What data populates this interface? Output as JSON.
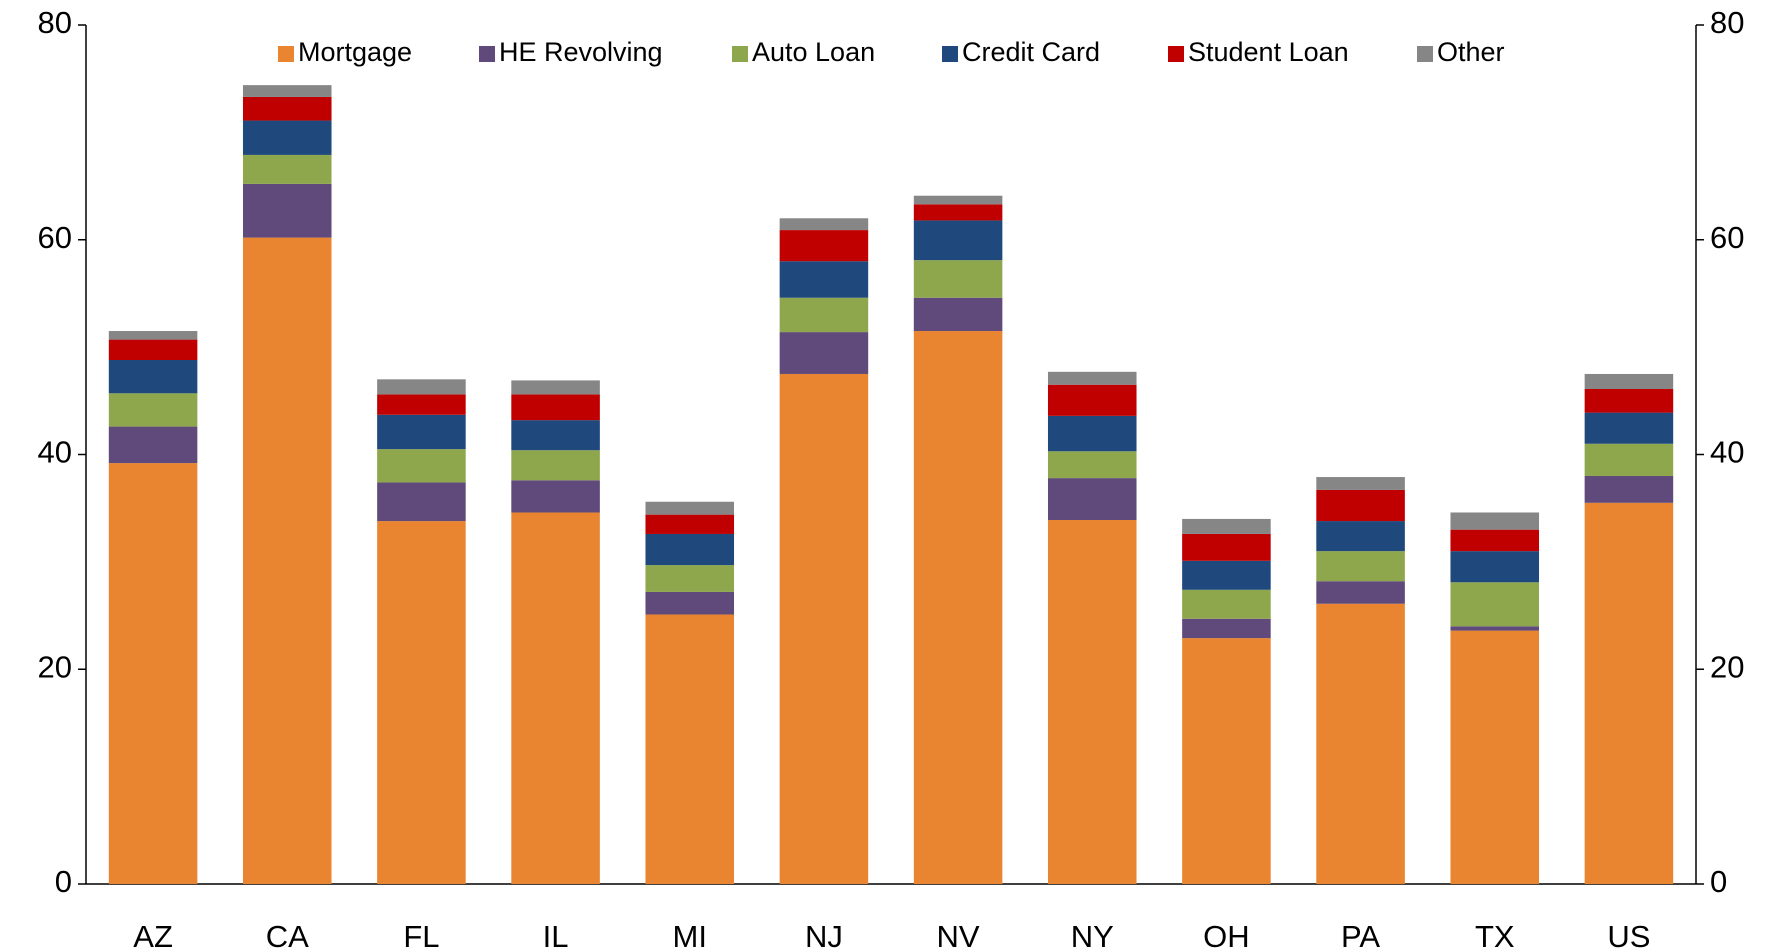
{
  "chart_data": {
    "type": "stacked-bar",
    "categories": [
      "AZ",
      "CA",
      "FL",
      "IL",
      "MI",
      "NJ",
      "NV",
      "NY",
      "OH",
      "PA",
      "TX",
      "US"
    ],
    "series": [
      {
        "name": "Mortgage",
        "color": "#e98531",
        "values": [
          39.2,
          60.2,
          33.8,
          34.6,
          25.1,
          47.5,
          51.5,
          33.9,
          22.9,
          26.1,
          23.6,
          35.5
        ]
      },
      {
        "name": "HE Revolving",
        "color": "#604a7b",
        "values": [
          3.4,
          5.0,
          3.6,
          3.0,
          2.1,
          3.9,
          3.1,
          3.9,
          1.8,
          2.1,
          0.4,
          2.5
        ]
      },
      {
        "name": "Auto Loan",
        "color": "#8ea64c",
        "values": [
          3.1,
          2.7,
          3.1,
          2.8,
          2.5,
          3.2,
          3.5,
          2.5,
          2.7,
          2.8,
          4.1,
          3.0
        ]
      },
      {
        "name": "Credit Card",
        "color": "#1f497d",
        "values": [
          3.1,
          3.2,
          3.2,
          2.8,
          2.9,
          3.4,
          3.7,
          3.3,
          2.7,
          2.8,
          2.9,
          2.9
        ]
      },
      {
        "name": "Student Loan",
        "color": "#c00000",
        "values": [
          1.9,
          2.2,
          1.9,
          2.4,
          1.8,
          2.9,
          1.5,
          2.9,
          2.5,
          2.9,
          2.0,
          2.2
        ]
      },
      {
        "name": "Other",
        "color": "#868686",
        "values": [
          0.8,
          1.1,
          1.4,
          1.3,
          1.2,
          1.1,
          0.8,
          1.2,
          1.4,
          1.2,
          1.6,
          1.4
        ]
      }
    ],
    "ylim": [
      0,
      80
    ],
    "yticks": [
      0,
      20,
      40,
      60,
      80
    ],
    "y2lim": [
      0,
      80
    ],
    "y2ticks": [
      0,
      20,
      40,
      60,
      80
    ],
    "legend": "top"
  }
}
